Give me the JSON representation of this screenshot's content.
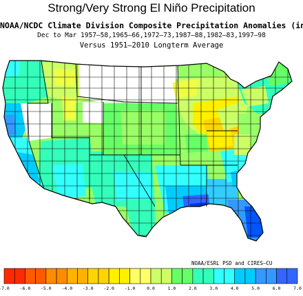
{
  "title": "Strong/Very Strong El Niño Precipitation",
  "subtitle_line1": "NOAA/NCDC Climate Division Composite Precipitation Anomalies (in)",
  "subtitle_line2": "Dec to Mar  1957–58,1965–66,1972–73,1987–88,1982–83,1997–98",
  "subtitle_line3": "Versus 1951–2010 Longterm Average",
  "credit": "NOAA/ESRL PSD and CIRES–CU",
  "colorbar": {
    "labels": [
      "-7.0",
      "-6.0",
      "-5.0",
      "-4.0",
      "-3.0",
      "-2.0",
      "-1.0",
      "0.0",
      "1.0",
      "2.0",
      "3.0",
      "4.0",
      "5.0",
      "6.0",
      "7.0"
    ],
    "colors": [
      "#ff2a00",
      "#ff5a00",
      "#ff8c00",
      "#ffb200",
      "#ffd400",
      "#fff000",
      "#ffff66",
      "#ffffff",
      "#ccff66",
      "#66ff66",
      "#33ffbb",
      "#33ffff",
      "#00ccff",
      "#3399ff",
      "#3366ff",
      "#0033ff"
    ]
  }
}
